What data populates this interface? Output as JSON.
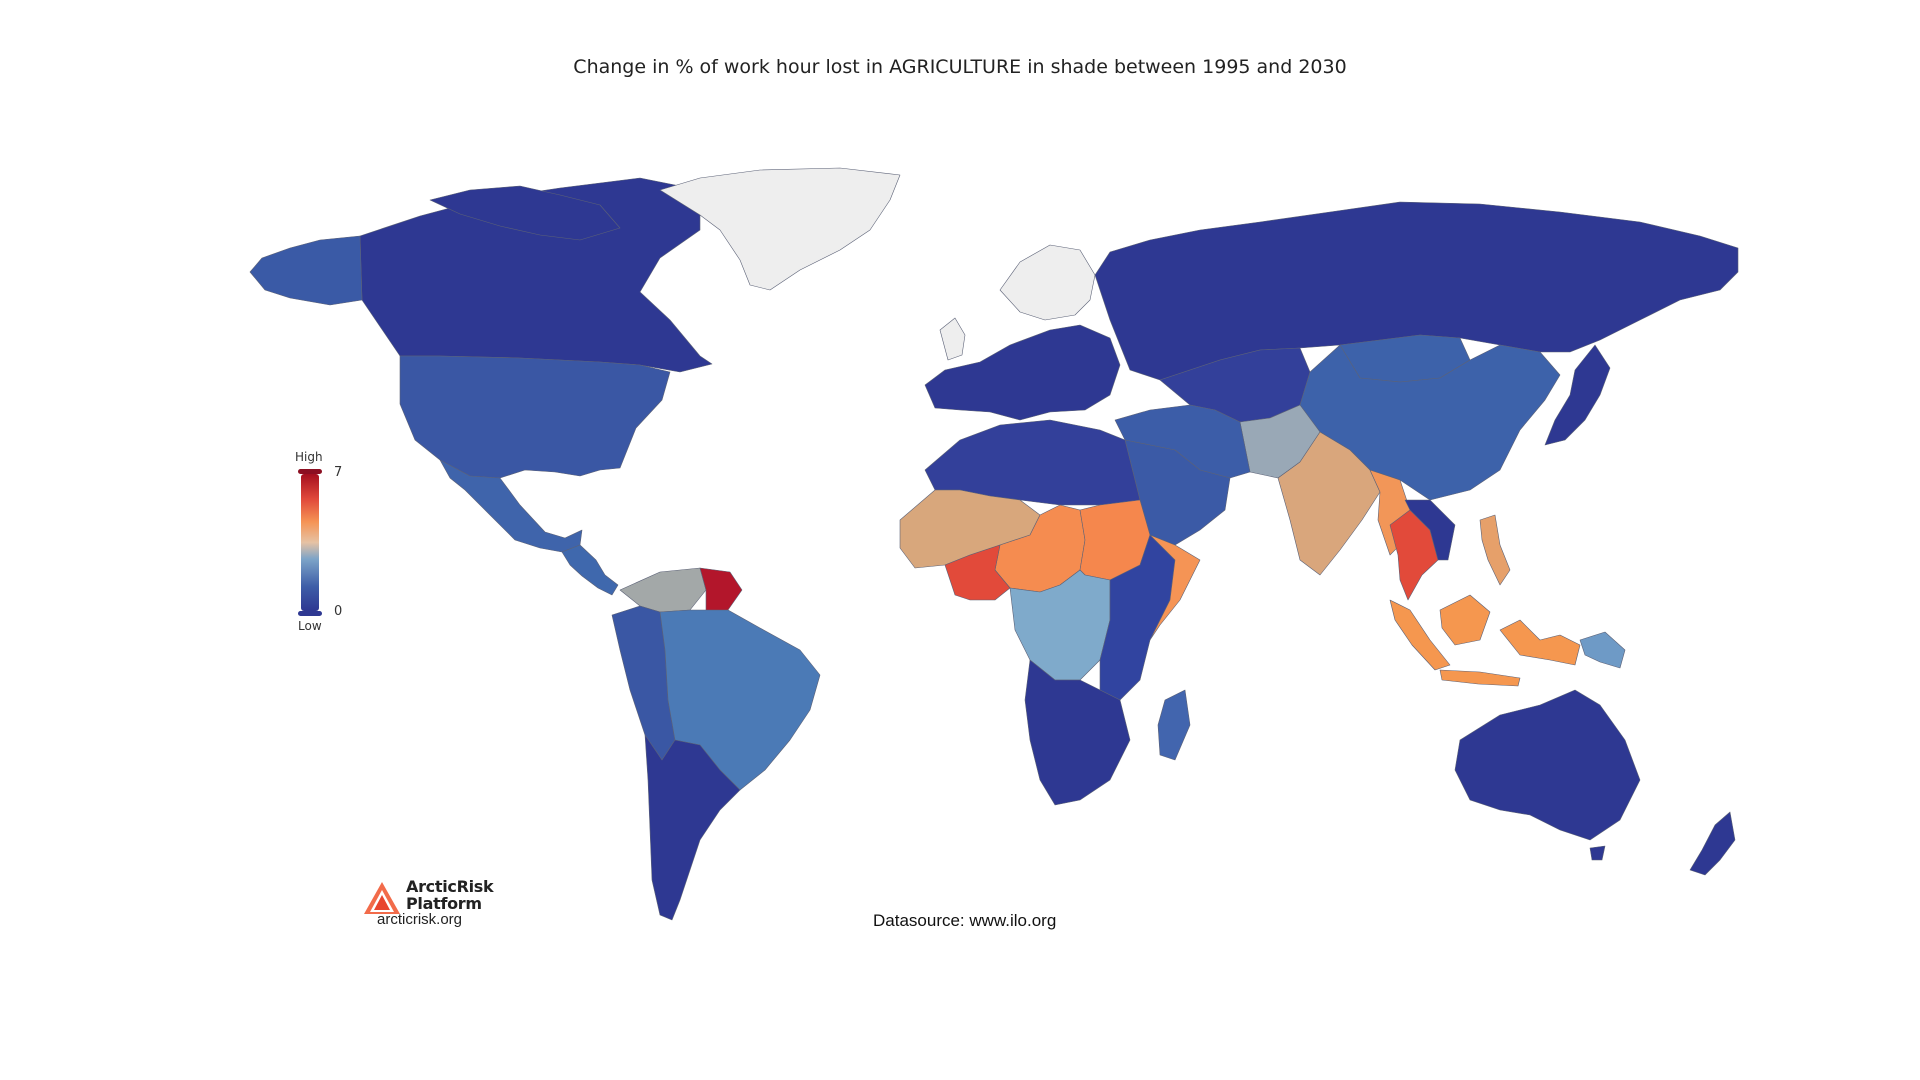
{
  "title": "Change in % of work hour lost in AGRICULTURE in shade between 1995 and 2030",
  "legend": {
    "high_label": "High",
    "low_label": "Low",
    "max_value": "7",
    "min_value": "0",
    "range": [
      0,
      7
    ],
    "colors": [
      "#2e3892",
      "#3e5ea8",
      "#7da4c8",
      "#e6c2a4",
      "#f59455",
      "#e0483a",
      "#a50f1f"
    ]
  },
  "no_data_color": "#eeeeee",
  "logo": {
    "name_line1": "ArcticRisk",
    "name_line2": "Platform",
    "url": "arcticrisk.org"
  },
  "source": "Datasource: www.ilo.org",
  "map_data": {
    "regions": [
      {
        "name": "Canada",
        "color": "#2e3892"
      },
      {
        "name": "Alaska",
        "color": "#3a5aa6"
      },
      {
        "name": "United States",
        "color": "#3a57a4"
      },
      {
        "name": "Mexico",
        "color": "#3f64ab"
      },
      {
        "name": "Greenland",
        "color": "#eeeeee"
      },
      {
        "name": "Northern Europe",
        "color": "#eeeeee"
      },
      {
        "name": "Western & Southern Europe",
        "color": "#2e3892"
      },
      {
        "name": "Russia",
        "color": "#2e3892"
      },
      {
        "name": "North Africa",
        "color": "#33409a"
      },
      {
        "name": "Sahel",
        "color": "#d8a77c"
      },
      {
        "name": "Nigeria / Chad belt",
        "color": "#f58c50"
      },
      {
        "name": "Sudan",
        "color": "#f5874d"
      },
      {
        "name": "Ghana / Côte d'Ivoire",
        "color": "#e24a3a"
      },
      {
        "name": "Central Africa",
        "color": "#7faacb"
      },
      {
        "name": "East Africa",
        "color": "#3144a0"
      },
      {
        "name": "Somalia",
        "color": "#f59455"
      },
      {
        "name": "Southern Africa",
        "color": "#2e3892"
      },
      {
        "name": "Madagascar",
        "color": "#4265ae"
      },
      {
        "name": "Middle East",
        "color": "#3c5da8"
      },
      {
        "name": "Arabia",
        "color": "#3b5aa6"
      },
      {
        "name": "Central Asia",
        "color": "#33409a"
      },
      {
        "name": "China",
        "color": "#3d62aa"
      },
      {
        "name": "Mongolia",
        "color": "#2e3892"
      },
      {
        "name": "Pakistan",
        "color": "#99a8b6"
      },
      {
        "name": "India",
        "color": "#d9a67c"
      },
      {
        "name": "Myanmar",
        "color": "#f29658"
      },
      {
        "name": "Thailand / Cambodia",
        "color": "#e24a3a"
      },
      {
        "name": "Indonesia",
        "color": "#f5974f"
      },
      {
        "name": "Philippines",
        "color": "#e6a06a"
      },
      {
        "name": "Japan",
        "color": "#2e3892"
      },
      {
        "name": "Australia",
        "color": "#2e3892"
      },
      {
        "name": "New Zealand",
        "color": "#2e3892"
      },
      {
        "name": "Papua New Guinea",
        "color": "#6e9ac6"
      },
      {
        "name": "Central America",
        "color": "#3f68ad"
      },
      {
        "name": "Venezuela",
        "color": "#a3a8a8"
      },
      {
        "name": "Guiana",
        "color": "#b3162b"
      },
      {
        "name": "Brazil",
        "color": "#4b7ab6"
      },
      {
        "name": "Andes",
        "color": "#3a57a4"
      },
      {
        "name": "Southern Cone",
        "color": "#2e3892"
      }
    ]
  }
}
